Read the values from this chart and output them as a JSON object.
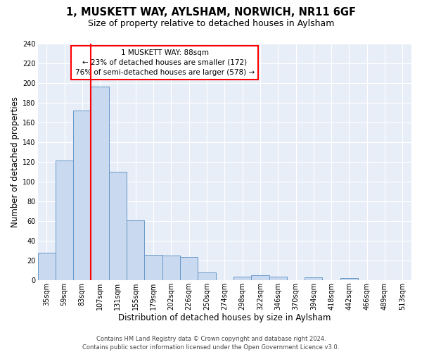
{
  "title": "1, MUSKETT WAY, AYLSHAM, NORWICH, NR11 6GF",
  "subtitle": "Size of property relative to detached houses in Aylsham",
  "xlabel": "Distribution of detached houses by size in Aylsham",
  "ylabel": "Number of detached properties",
  "bar_labels": [
    "35sqm",
    "59sqm",
    "83sqm",
    "107sqm",
    "131sqm",
    "155sqm",
    "179sqm",
    "202sqm",
    "226sqm",
    "250sqm",
    "274sqm",
    "298sqm",
    "322sqm",
    "346sqm",
    "370sqm",
    "394sqm",
    "418sqm",
    "442sqm",
    "466sqm",
    "489sqm",
    "513sqm"
  ],
  "bar_heights": [
    28,
    121,
    172,
    196,
    110,
    61,
    26,
    25,
    24,
    8,
    0,
    4,
    5,
    4,
    0,
    3,
    0,
    2,
    0,
    0,
    0
  ],
  "bar_color": "#c9d9ef",
  "bar_edge_color": "#6898c8",
  "red_line_x": 2.5,
  "red_line_label": "1 MUSKETT WAY: 88sqm",
  "annotation_line1": "← 23% of detached houses are smaller (172)",
  "annotation_line2": "76% of semi-detached houses are larger (578) →",
  "ylim": [
    0,
    240
  ],
  "yticks": [
    0,
    20,
    40,
    60,
    80,
    100,
    120,
    140,
    160,
    180,
    200,
    220,
    240
  ],
  "footer_line1": "Contains HM Land Registry data © Crown copyright and database right 2024.",
  "footer_line2": "Contains public sector information licensed under the Open Government Licence v3.0.",
  "fig_bg_color": "#ffffff",
  "plot_bg_color": "#e8eef8",
  "grid_color": "#ffffff",
  "title_fontsize": 10.5,
  "subtitle_fontsize": 9,
  "axis_fontsize": 8.5,
  "tick_fontsize": 7,
  "footer_fontsize": 6,
  "annotation_fontsize": 7.5
}
